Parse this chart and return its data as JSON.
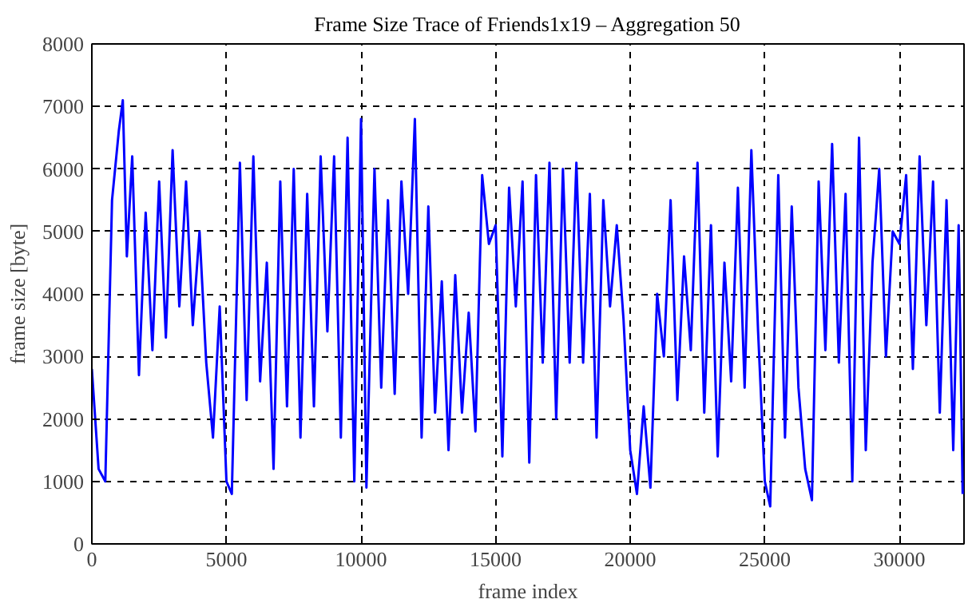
{
  "chart_data": {
    "type": "line",
    "title": "Frame Size Trace of Friends1x19 – Aggregation 50",
    "xlabel": "frame index",
    "ylabel": "frame size [byte]",
    "x": [
      0,
      250,
      500,
      750,
      1000,
      1150,
      1300,
      1500,
      1750,
      2000,
      2250,
      2500,
      2750,
      3000,
      3250,
      3500,
      3750,
      4000,
      4250,
      4500,
      4750,
      5000,
      5200,
      5500,
      5750,
      6000,
      6250,
      6500,
      6750,
      7000,
      7250,
      7500,
      7750,
      8000,
      8250,
      8500,
      8750,
      9000,
      9250,
      9500,
      9750,
      10000,
      10200,
      10500,
      10750,
      11000,
      11250,
      11500,
      11750,
      12000,
      12250,
      12500,
      12750,
      13000,
      13250,
      13500,
      13750,
      14000,
      14250,
      14500,
      14750,
      15000,
      15250,
      15500,
      15750,
      16000,
      16250,
      16500,
      16750,
      17000,
      17250,
      17500,
      17750,
      18000,
      18250,
      18500,
      18750,
      19000,
      19250,
      19500,
      19750,
      20000,
      20250,
      20500,
      20750,
      21000,
      21250,
      21500,
      21750,
      22000,
      22250,
      22500,
      22750,
      23000,
      23250,
      23500,
      23750,
      24000,
      24250,
      24500,
      24750,
      25000,
      25200,
      25500,
      25750,
      26000,
      26250,
      26500,
      26750,
      27000,
      27250,
      27500,
      27750,
      28000,
      28250,
      28500,
      28750,
      29000,
      29250,
      29500,
      29750,
      30000,
      30250,
      30500,
      30750,
      31000,
      31250,
      31500,
      31750,
      32000,
      32200,
      32350
    ],
    "series": [
      {
        "color": "#0000ff",
        "values": [
          2800,
          1200,
          1000,
          5500,
          6600,
          7100,
          4600,
          6200,
          2700,
          5300,
          3100,
          5800,
          3300,
          6300,
          3800,
          5800,
          3500,
          5000,
          2900,
          1700,
          3800,
          1000,
          800,
          6100,
          2300,
          6200,
          2600,
          4500,
          1200,
          5800,
          2200,
          6000,
          1700,
          5600,
          2200,
          6200,
          3400,
          6200,
          1700,
          6500,
          1000,
          6800,
          900,
          6000,
          2500,
          5500,
          2400,
          5800,
          4000,
          6800,
          1700,
          5400,
          2100,
          4200,
          1500,
          4300,
          2100,
          3700,
          1800,
          5900,
          4800,
          5100,
          1400,
          5700,
          3800,
          5800,
          1300,
          5900,
          2900,
          6100,
          2000,
          6000,
          2900,
          6100,
          2900,
          5600,
          1700,
          5500,
          3800,
          5100,
          3600,
          1500,
          800,
          2200,
          900,
          4000,
          3000,
          5500,
          2300,
          4600,
          3100,
          6100,
          2100,
          5100,
          1400,
          4500,
          2600,
          5700,
          2500,
          6300,
          3400,
          1000,
          600,
          5900,
          1700,
          5400,
          2500,
          1200,
          700,
          5800,
          3100,
          6400,
          2900,
          5600,
          1000,
          6500,
          1500,
          4500,
          6000,
          3000,
          5000,
          4800,
          5900,
          2800,
          6200,
          3500,
          5800,
          2100,
          5500,
          1500,
          5100,
          800
        ]
      }
    ],
    "xlim": [
      0,
      32400
    ],
    "ylim": [
      0,
      8000
    ],
    "xticks": [
      0,
      5000,
      10000,
      15000,
      20000,
      25000,
      30000
    ],
    "yticks": [
      0,
      1000,
      2000,
      3000,
      4000,
      5000,
      6000,
      7000,
      8000
    ],
    "grid": true,
    "line_style": "solid",
    "marker": "none"
  }
}
